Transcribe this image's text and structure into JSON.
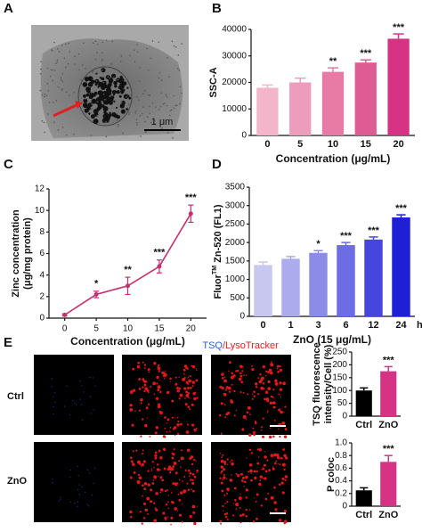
{
  "panels": {
    "labels": [
      "A",
      "B",
      "C",
      "D",
      "E"
    ]
  },
  "image_a": {
    "scale": "1 μm"
  },
  "panel_e": {
    "stain_a": "TSQ",
    "stain_b": "/LysoTracker",
    "rows": [
      "Ctrl",
      "ZnO"
    ]
  },
  "chart_data": [
    {
      "type": "bar",
      "ylabel": [
        "SSC-A"
      ],
      "xlabel": "Concentration (μg/mL)",
      "categories": [
        "0",
        "5",
        "10",
        "15",
        "20"
      ],
      "values": [
        18000,
        20000,
        24000,
        27500,
        36500
      ],
      "errors": [
        1000,
        1600,
        1500,
        1000,
        1800
      ],
      "annotations": [
        null,
        null,
        "**",
        "***",
        "***"
      ],
      "colors": [
        "#f2b5c9",
        "#ee9cbc",
        "#e87aa6",
        "#df5b93",
        "#d63384"
      ],
      "ylim": [
        0,
        40000
      ],
      "yticks": [
        0,
        10000,
        20000,
        30000,
        40000
      ]
    },
    {
      "type": "line",
      "ylabel": [
        "Zinc concentration",
        "(μg/mg protein)"
      ],
      "xlabel": "Concentration (μg/mL)",
      "x": [
        0,
        5,
        10,
        15,
        20
      ],
      "values": [
        0.3,
        2.2,
        3.0,
        4.8,
        9.7
      ],
      "errors": [
        0.1,
        0.3,
        0.8,
        0.6,
        0.8
      ],
      "annotations": [
        null,
        "*",
        "**",
        "***",
        "***"
      ],
      "color": "#c2306f",
      "xlim": [
        -2.5,
        22.5
      ],
      "xticks": [
        0,
        5,
        10,
        15,
        20
      ],
      "ylim": [
        0,
        12
      ],
      "yticks": [
        0,
        2,
        4,
        6,
        8,
        10,
        12
      ]
    },
    {
      "type": "bar",
      "ylabel": [
        "Fluor"
      ],
      "ylabel_sup": "TM",
      "ylabel_rest": " Zn-520 (FL1)",
      "xlabel": "ZnO (15 μg/mL)",
      "x_unit": "h",
      "categories": [
        "0",
        "1",
        "3",
        "6",
        "12",
        "24"
      ],
      "values": [
        1390,
        1560,
        1720,
        1930,
        2080,
        2680
      ],
      "errors": [
        80,
        60,
        60,
        70,
        70,
        70
      ],
      "annotations": [
        null,
        null,
        "*",
        "***",
        "***",
        "***"
      ],
      "colors": [
        "#c7c7f0",
        "#ababed",
        "#8c8ce8",
        "#6c6ce5",
        "#4646df",
        "#1f1fd6"
      ],
      "ylim": [
        0,
        3500
      ],
      "yticks": [
        0,
        500,
        1000,
        1500,
        2000,
        2500,
        3000,
        3500
      ]
    },
    {
      "type": "bar",
      "ylabel": [
        "TSQ fluorescence",
        "intensity/Cell (%)"
      ],
      "categories": [
        "Ctrl",
        "ZnO"
      ],
      "values": [
        100,
        175
      ],
      "errors": [
        10,
        18
      ],
      "annotations": [
        null,
        "***"
      ],
      "colors": [
        "#000000",
        "#d63384"
      ],
      "ylim": [
        0,
        250
      ],
      "yticks": [
        0,
        50,
        100,
        150,
        200,
        250
      ]
    },
    {
      "type": "bar",
      "ylabel": [
        "P coloc"
      ],
      "categories": [
        "Ctrl",
        "ZnO"
      ],
      "values": [
        0.25,
        0.7
      ],
      "errors": [
        0.04,
        0.1
      ],
      "annotations": [
        null,
        "***"
      ],
      "colors": [
        "#000000",
        "#d63384"
      ],
      "ylim": [
        0,
        1
      ],
      "yticks": [
        0,
        0.2,
        0.4,
        0.6,
        0.8,
        {
          "value": 1,
          "label": "1.0"
        }
      ]
    }
  ]
}
